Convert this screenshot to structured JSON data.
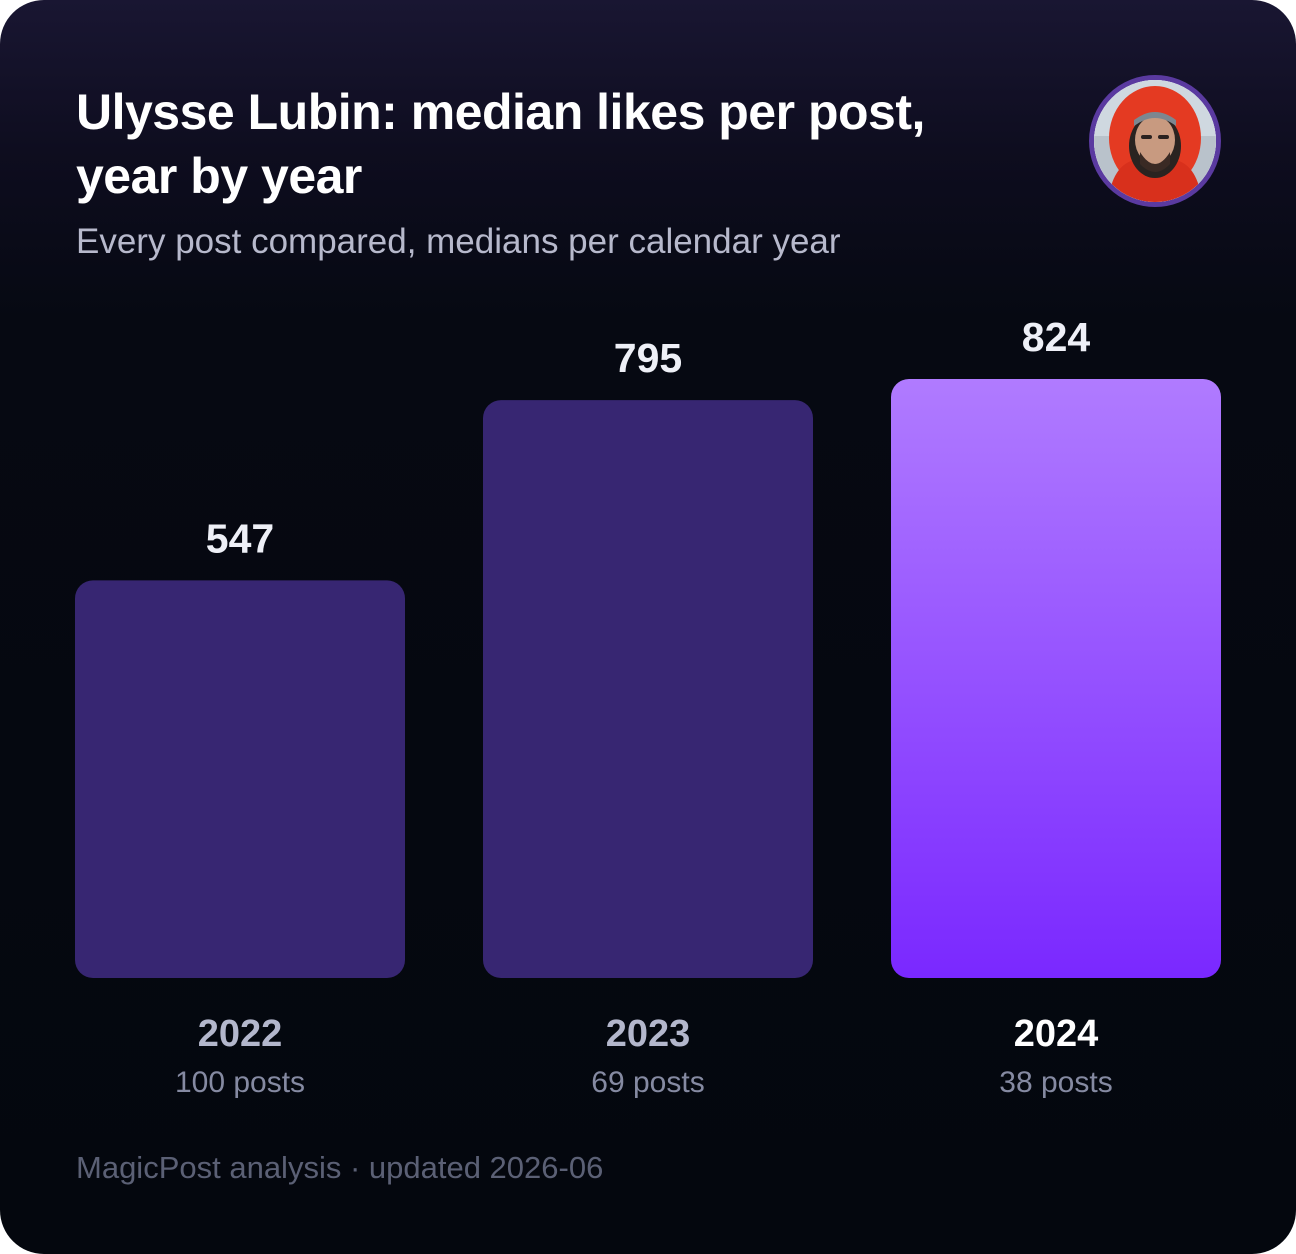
{
  "header": {
    "title": "Ulysse Lubin: median likes per post, year by year",
    "subtitle": "Every post compared, medians per calendar year"
  },
  "avatar": {
    "icon": "profile-photo-avatar"
  },
  "chart_data": {
    "type": "bar",
    "categories": [
      "2022",
      "2023",
      "2024"
    ],
    "values": [
      547,
      795,
      824
    ],
    "value_labels": [
      "547",
      "795",
      "824"
    ],
    "post_counts": [
      "100 posts",
      "69 posts",
      "38 posts"
    ],
    "highlight_index": 2,
    "title": "Ulysse Lubin: median likes per post, year by year",
    "subtitle": "Every post compared, medians per calendar year",
    "xlabel": "",
    "ylabel": "",
    "ylim": [
      0,
      824
    ],
    "grid": false,
    "legend": "none",
    "colors": {
      "bar": "#372672",
      "highlight_top": "#b07bff",
      "highlight_bottom": "#7a28ff"
    }
  },
  "footer": {
    "text": "MagicPost analysis · updated 2026-06"
  }
}
